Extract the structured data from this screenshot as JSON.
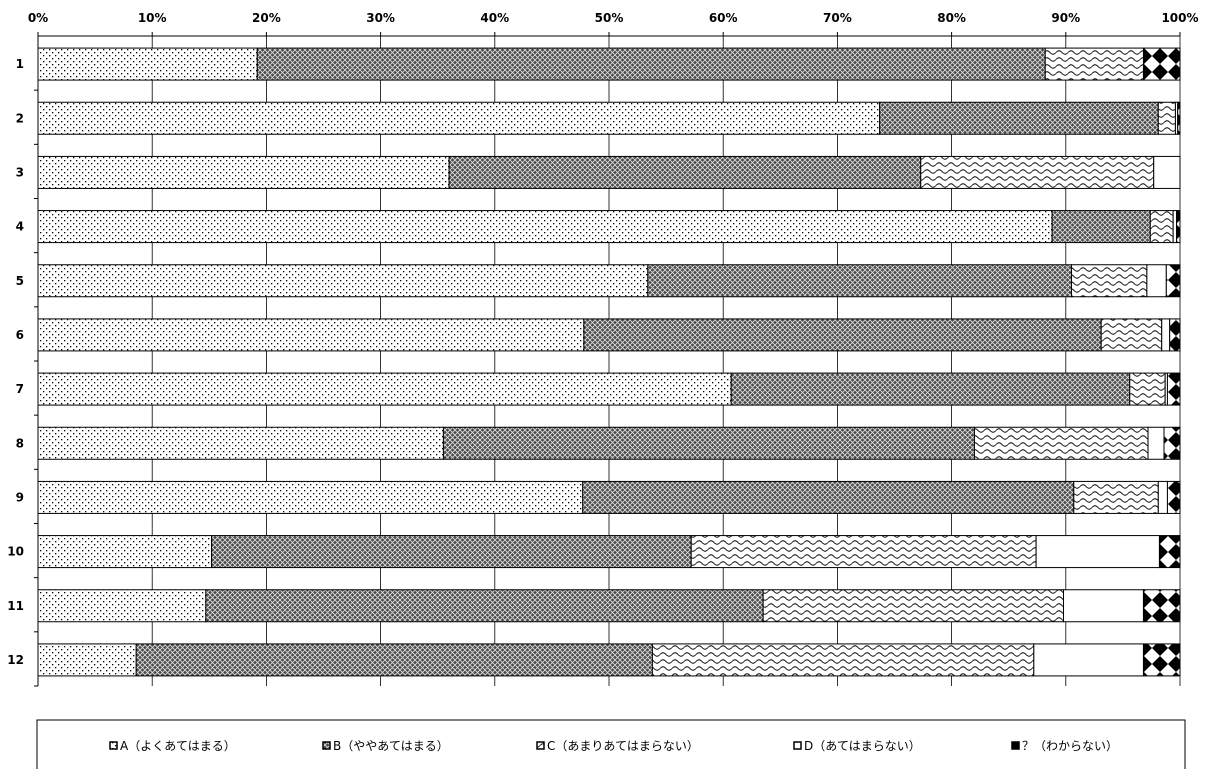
{
  "chart_data": {
    "type": "bar",
    "orientation": "horizontal",
    "stacked": "percent",
    "xlim": [
      0,
      100
    ],
    "x_ticks": [
      "0%",
      "10%",
      "20%",
      "30%",
      "40%",
      "50%",
      "60%",
      "70%",
      "80%",
      "90%",
      "100%"
    ],
    "categories": [
      "1",
      "2",
      "3",
      "4",
      "5",
      "6",
      "7",
      "8",
      "9",
      "10",
      "11",
      "12"
    ],
    "series": [
      {
        "name": "A（よくあてはまる）",
        "pattern": "dots",
        "values": [
          19.2,
          73.7,
          36.0,
          88.8,
          53.4,
          47.8,
          60.7,
          35.5,
          47.7,
          15.2,
          14.7,
          8.6
        ]
      },
      {
        "name": "B（ややあてはまる）",
        "pattern": "crosshatch",
        "values": [
          69.0,
          24.4,
          41.3,
          8.6,
          37.1,
          45.3,
          34.9,
          46.5,
          43.0,
          42.0,
          48.8,
          45.2
        ]
      },
      {
        "name": "C（あまりあてはまらない）",
        "pattern": "wave",
        "values": [
          8.6,
          1.5,
          20.4,
          2.0,
          6.6,
          5.3,
          3.1,
          15.2,
          7.4,
          30.2,
          26.3,
          33.4
        ]
      },
      {
        "name": "D（あてはまらない）",
        "pattern": "blank",
        "values": [
          0.0,
          0.2,
          2.3,
          0.3,
          1.7,
          0.7,
          0.2,
          1.4,
          0.8,
          10.8,
          7.0,
          9.6
        ]
      },
      {
        "name": "？（わからない）",
        "pattern": "diamond",
        "values": [
          3.2,
          0.2,
          0.0,
          0.3,
          1.2,
          0.9,
          1.1,
          1.4,
          1.1,
          1.8,
          3.2,
          3.2
        ]
      }
    ],
    "grid": true,
    "legend_position": "bottom",
    "title": "",
    "xlabel": "",
    "ylabel": ""
  }
}
